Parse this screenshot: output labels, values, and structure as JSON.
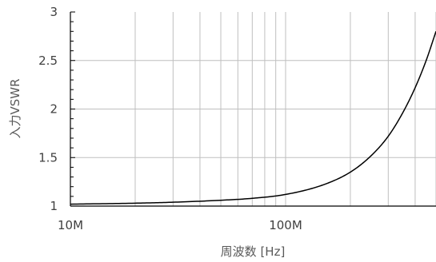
{
  "chart_data": {
    "type": "line",
    "xlabel": "周波数 [Hz]",
    "ylabel": "入力VSWR",
    "x_scale": "log",
    "xlim": [
      10000000,
      500000000
    ],
    "ylim": [
      1,
      3
    ],
    "x_tick_labels": [
      {
        "value": 10000000,
        "label": "10M"
      },
      {
        "value": 100000000,
        "label": "100M"
      }
    ],
    "y_tick_labels": [
      {
        "value": 1,
        "label": "1"
      },
      {
        "value": 1.5,
        "label": "1.5"
      },
      {
        "value": 2,
        "label": "2"
      },
      {
        "value": 2.5,
        "label": "2.5"
      },
      {
        "value": 3,
        "label": "3"
      }
    ],
    "grid": true,
    "series": [
      {
        "color": "#000000",
        "x": [
          10000000,
          20000000,
          30000000,
          50000000,
          70000000,
          100000000,
          150000000,
          200000000,
          250000000,
          300000000,
          350000000,
          400000000,
          450000000,
          500000000
        ],
        "y": [
          1.02,
          1.03,
          1.04,
          1.06,
          1.08,
          1.12,
          1.22,
          1.35,
          1.52,
          1.72,
          1.96,
          2.22,
          2.5,
          2.8
        ]
      }
    ]
  }
}
